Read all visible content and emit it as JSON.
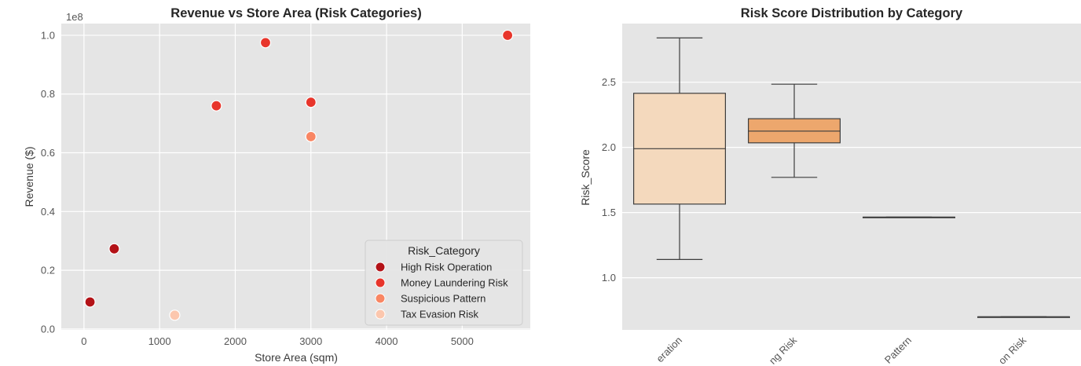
{
  "colors": {
    "background": "#e5e5e5",
    "grid": "#ffffff",
    "text": "#262626",
    "tick_text": "#555555",
    "High Risk Operation": "#b31217",
    "Money Laundering Risk": "#e8352b",
    "Suspicious Pattern": "#f98663",
    "Tax Evasion Risk": "#fcc7ae",
    "box_fills": [
      "#f4d9bd",
      "#eda76d",
      "#e6844d",
      "#e2763c"
    ],
    "box_edge": "#3d3d3d"
  },
  "chart_data": [
    {
      "type": "scatter",
      "title": "Revenue vs Store Area (Risk Categories)",
      "xlabel": "Store Area (sqm)",
      "ylabel": "Revenue ($)",
      "y_offset_text": "1e8",
      "xlim": [
        -300,
        5900
      ],
      "ylim": [
        -0.003,
        1.04
      ],
      "xticks": [
        0,
        1000,
        2000,
        3000,
        4000,
        5000
      ],
      "xtick_labels": [
        "0",
        "1000",
        "2000",
        "3000",
        "4000",
        "5000"
      ],
      "yticks": [
        0.0,
        0.2,
        0.4,
        0.6,
        0.8,
        1.0
      ],
      "ytick_labels": [
        "0.0",
        "0.2",
        "0.4",
        "0.6",
        "0.8",
        "1.0"
      ],
      "grid": true,
      "legend": {
        "title": "Risk_Category",
        "placement": "lower right",
        "entries": [
          "High Risk Operation",
          "Money Laundering Risk",
          "Suspicious Pattern",
          "Tax Evasion Risk"
        ]
      },
      "series": [
        {
          "name": "High Risk Operation",
          "points": [
            [
              80,
              0.092
            ],
            [
              400,
              0.273
            ]
          ]
        },
        {
          "name": "Money Laundering Risk",
          "points": [
            [
              1750,
              0.76
            ],
            [
              2400,
              0.975
            ],
            [
              3000,
              0.772
            ],
            [
              5600,
              1.0
            ]
          ]
        },
        {
          "name": "Suspicious Pattern",
          "points": [
            [
              3000,
              0.655
            ]
          ]
        },
        {
          "name": "Tax Evasion Risk",
          "points": [
            [
              1200,
              0.047
            ]
          ]
        }
      ]
    },
    {
      "type": "box",
      "title": "Risk Score Distribution by Category",
      "xlabel": "",
      "ylabel": "Risk_Score",
      "ylim": [
        0.6,
        2.95
      ],
      "yticks": [
        1.0,
        1.5,
        2.0,
        2.5
      ],
      "ytick_labels": [
        "1.0",
        "1.5",
        "2.0",
        "2.5"
      ],
      "grid": true,
      "xtick_labels": [
        "eration",
        "ng Risk",
        "Pattern",
        "on Risk"
      ],
      "boxes": [
        {
          "whisker_low": 1.14,
          "q1": 1.565,
          "median": 1.99,
          "q3": 2.415,
          "whisker_high": 2.84
        },
        {
          "whisker_low": 1.77,
          "q1": 2.035,
          "median": 2.125,
          "q3": 2.22,
          "whisker_high": 2.485
        },
        {
          "whisker_low": 1.465,
          "q1": 1.465,
          "median": 1.465,
          "q3": 1.465,
          "whisker_high": 1.465
        },
        {
          "whisker_low": 0.7,
          "q1": 0.7,
          "median": 0.7,
          "q3": 0.7,
          "whisker_high": 0.7
        }
      ]
    }
  ]
}
